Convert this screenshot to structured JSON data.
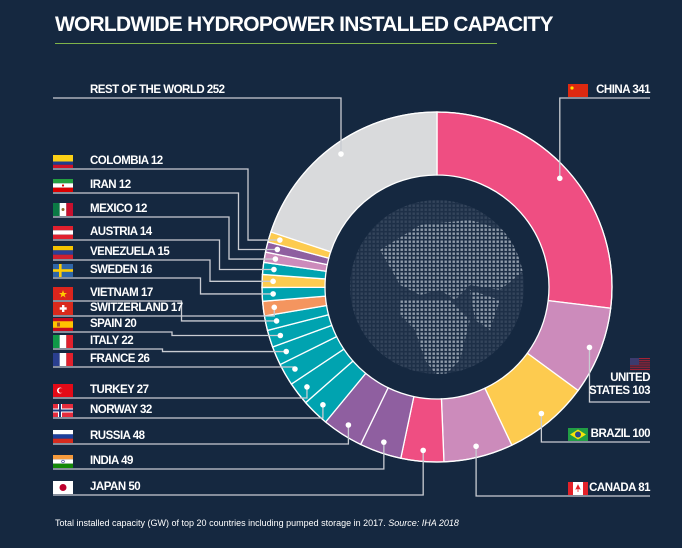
{
  "title": "WORLDWIDE HYDROPOWER INSTALLED CAPACITY",
  "footer": {
    "text": "Total installed capacity (GW) of top 20 countries including pumped storage in 2017. ",
    "source": "Source: IHA 2018"
  },
  "chart_data": {
    "type": "pie",
    "variant": "donut",
    "unit": "GW",
    "center_image": "dotted-globe",
    "background_color": "#152840",
    "slices": [
      {
        "label": "CHINA",
        "value": 341,
        "color": "#ef4e82",
        "flag": "flag-china-icon"
      },
      {
        "label": "UNITED STATES",
        "label_lines": [
          "UNITED",
          "STATES"
        ],
        "value": 103,
        "color": "#cc8bbb",
        "flag": "flag-usa-icon"
      },
      {
        "label": "BRAZIL",
        "value": 100,
        "color": "#fdcb4f",
        "flag": "flag-brazil-icon"
      },
      {
        "label": "CANADA",
        "value": 81,
        "color": "#cc8bbb",
        "flag": "flag-canada-icon"
      },
      {
        "label": "JAPAN",
        "value": 50,
        "color": "#ef4e82",
        "flag": "flag-japan-icon"
      },
      {
        "label": "INDIA",
        "value": 49,
        "color": "#8f5fa0",
        "flag": "flag-india-icon"
      },
      {
        "label": "RUSSIA",
        "value": 48,
        "color": "#8f5fa0",
        "flag": "flag-russia-icon"
      },
      {
        "label": "NORWAY",
        "value": 32,
        "color": "#00a3b0",
        "flag": "flag-norway-icon"
      },
      {
        "label": "TURKEY",
        "value": 27,
        "color": "#00a3b0",
        "flag": "flag-turkey-icon"
      },
      {
        "label": "FRANCE",
        "value": 26,
        "color": "#00a3b0",
        "flag": "flag-france-icon"
      },
      {
        "label": "ITALY",
        "value": 22,
        "color": "#00a3b0",
        "flag": "flag-italy-icon"
      },
      {
        "label": "SPAIN",
        "value": 20,
        "color": "#00a3b0",
        "flag": "flag-spain-icon"
      },
      {
        "label": "VIETNAM",
        "value": 17,
        "color": "#00a3b0",
        "flag": "flag-vietnam-icon"
      },
      {
        "label": "SWITZERLAND",
        "value": 17,
        "color": "#f4955f",
        "flag": "flag-switzerland-icon"
      },
      {
        "label": "SWEDEN",
        "value": 16,
        "color": "#00a3b0",
        "flag": "flag-sweden-icon"
      },
      {
        "label": "VENEZUELA",
        "value": 15,
        "color": "#fdcb4f",
        "flag": "flag-venezuela-icon"
      },
      {
        "label": "AUSTRIA",
        "value": 14,
        "color": "#00a3b0",
        "flag": "flag-austria-icon"
      },
      {
        "label": "MEXICO",
        "value": 12,
        "color": "#cc8bbb",
        "flag": "flag-mexico-icon"
      },
      {
        "label": "IRAN",
        "value": 12,
        "color": "#8f5fa0",
        "flag": "flag-iran-icon"
      },
      {
        "label": "COLOMBIA",
        "value": 12,
        "color": "#fdcb4f",
        "flag": "flag-colombia-icon"
      },
      {
        "label": "REST OF THE WORLD",
        "value": 252,
        "color": "#d9dadc",
        "flag": null
      }
    ]
  }
}
